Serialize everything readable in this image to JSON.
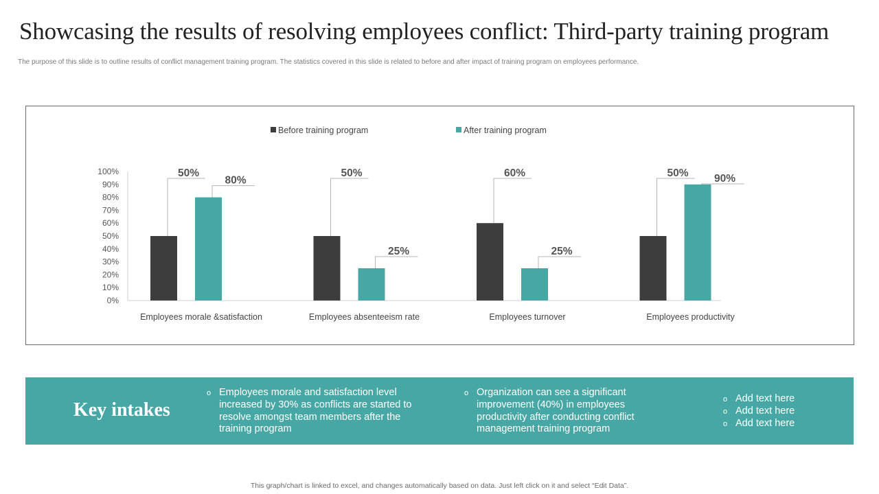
{
  "header": {
    "title": "Showcasing the results of resolving employees conflict: Third-party training program",
    "subtitle": "The purpose of this slide is to outline results of conflict management training program. The statistics covered in this slide is related to before and after impact of training program on employees performance."
  },
  "chart_data": {
    "type": "bar",
    "title": "",
    "xlabel": "",
    "ylabel": "",
    "ylim": [
      0,
      100
    ],
    "y_ticks": [
      "0%",
      "10%",
      "20%",
      "30%",
      "40%",
      "50%",
      "60%",
      "70%",
      "80%",
      "90%",
      "100%"
    ],
    "categories": [
      "Employees morale &satisfaction",
      "Employees absenteeism rate",
      "Employees turnover",
      "Employees productivity"
    ],
    "series": [
      {
        "name": "Before training program",
        "color": "#3d3d3d",
        "values": [
          50,
          50,
          60,
          50
        ],
        "labels": [
          "50%",
          "50%",
          "60%",
          "50%"
        ]
      },
      {
        "name": "After training program",
        "color": "#46a7a4",
        "values": [
          80,
          25,
          25,
          90
        ],
        "labels": [
          "80%",
          "25%",
          "25%",
          "90%"
        ]
      }
    ],
    "legend": "top-center",
    "grid": false
  },
  "key_intakes": {
    "title": "Key intakes",
    "bullet_mark": "o",
    "bullets": [
      "Employees morale and satisfaction level increased by 30% as conflicts are started to resolve amongst team members after the training program",
      "Organization can see a significant improvement (40%) in employees productivity after conducting conflict management training program"
    ],
    "placeholders": [
      "Add text here",
      "Add text here",
      "Add text here"
    ]
  },
  "footer": {
    "note": "This graph/chart is linked to excel,  and changes automatically based on data. Just left click on it and select “Edit Data”."
  }
}
